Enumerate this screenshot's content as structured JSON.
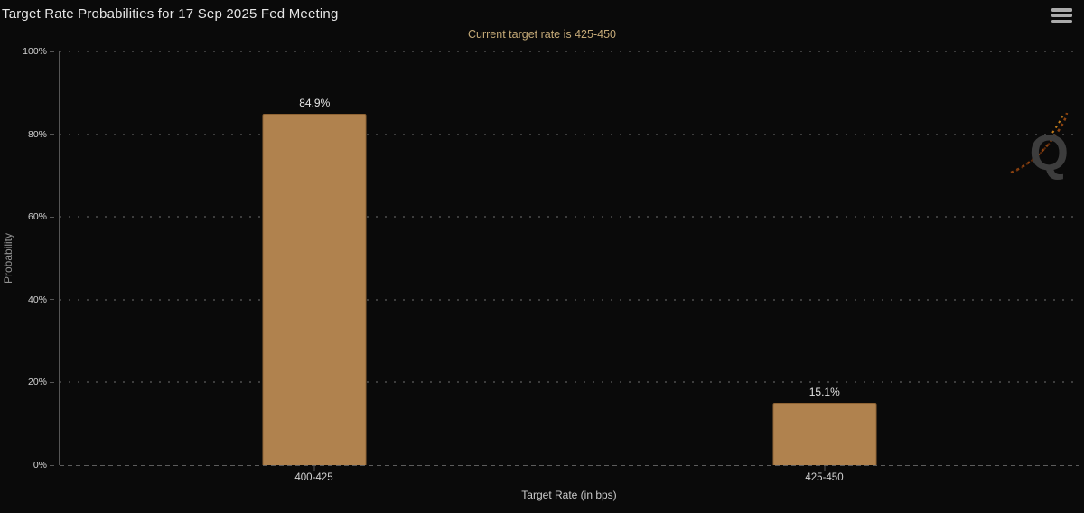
{
  "header": {
    "title": "Target Rate Probabilities for 17 Sep 2025 Fed Meeting"
  },
  "subtitle": "Current target rate is 425-450",
  "watermark": {
    "letter": "Q"
  },
  "chart_data": {
    "type": "bar",
    "title": "Target Rate Probabilities for 17 Sep 2025 Fed Meeting",
    "subtitle": "Current target rate is 425-450",
    "categories": [
      "400-425",
      "425-450"
    ],
    "values": [
      84.9,
      15.1
    ],
    "value_labels": [
      "84.9%",
      "15.1%"
    ],
    "xlabel": "Target Rate (in bps)",
    "ylabel": "Probability",
    "ylim": [
      0,
      100
    ],
    "ytick_step": 20,
    "yticks": [
      "0%",
      "20%",
      "40%",
      "60%",
      "80%",
      "100%"
    ],
    "grid": "horizontal-dotted",
    "legend": "none",
    "bar_color": "#b0824e",
    "bar_border_color": "#8f6435",
    "background_color": "#0a0a0a",
    "text_color": "#d2d2d2",
    "subtitle_color": "#c4a977",
    "axis_color": "#565656",
    "gridline_color": "#3d3d3d"
  },
  "icons": {
    "menu": "hamburger-menu-icon",
    "logo": "quikstrike-q-logo"
  }
}
